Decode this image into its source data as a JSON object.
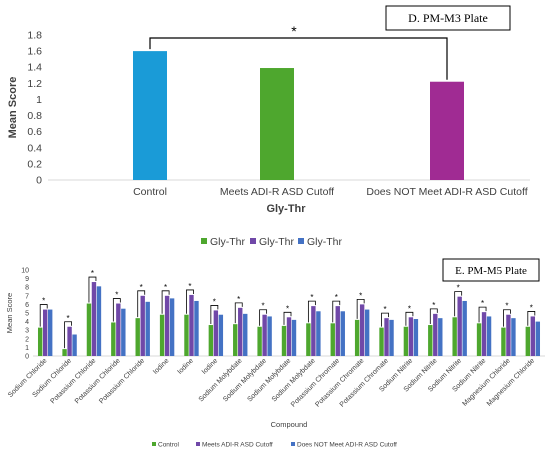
{
  "chart_data": [
    {
      "type": "bar",
      "panel_label": "D. PM-M3 Plate",
      "categories": [
        "Control",
        "Meets ADI-R ASD Cutoff",
        "Does NOT Meet ADI-R ASD Cutoff"
      ],
      "values": [
        1.6,
        1.39,
        1.22
      ],
      "bar_colors": [
        "#1a9bd7",
        "#4ea72e",
        "#a02b93"
      ],
      "ylabel": "Mean Score",
      "xlabel": "Gly-Thr",
      "ylim": [
        0,
        1.8
      ],
      "yticks": [
        "0",
        "0.2",
        "0.4",
        "0.6",
        "0.8",
        "1",
        "1.2",
        "1.4",
        "1.6",
        "1.8"
      ],
      "significance": "*",
      "legend": {
        "position": "bottom",
        "entries": [
          {
            "label": "Gly-Thr",
            "color": "#4ea72e"
          },
          {
            "label": "Gly-Thr",
            "color": "#7048a8"
          },
          {
            "label": "Gly-Thr",
            "color": "#4472c4"
          }
        ]
      },
      "grid": false
    },
    {
      "type": "bar",
      "panel_label": "E. PM-M5 Plate",
      "categories": [
        "Sodium Chloride",
        "Sodium Chloride",
        "Potassium Chloride",
        "Potassium Chloride",
        "Potassium Chloride",
        "Iodine",
        "Iodine",
        "Iodine",
        "Sodium Molybdate",
        "Sodium Molybdate",
        "Sodium Molybdate",
        "Sodium Molybdate",
        "Potassium Chromate",
        "Potassium Chromate",
        "Potassium Chromate",
        "Sodium Nitrite",
        "Sodium Nitrite",
        "Sodium Nitrite",
        "Sodium Nitrite",
        "Magnesium Chloride",
        "Magnesium Chloride"
      ],
      "series": [
        {
          "name": "Control",
          "color": "#4ea72e",
          "values": [
            3.3,
            0.8,
            6.1,
            3.9,
            4.4,
            4.8,
            4.8,
            3.6,
            3.7,
            3.4,
            3.5,
            3.8,
            3.8,
            4.2,
            3.3,
            3.4,
            3.6,
            4.5,
            3.8,
            3.3,
            3.4
          ]
        },
        {
          "name": "Meets ADI-R ASD Cutoff",
          "color": "#7048a8",
          "values": [
            5.4,
            3.4,
            8.6,
            6.1,
            7.0,
            7.0,
            7.1,
            5.3,
            5.6,
            4.8,
            4.5,
            5.8,
            5.8,
            6.0,
            4.4,
            4.5,
            4.9,
            6.9,
            5.1,
            4.8,
            4.6
          ]
        },
        {
          "name": "Does NOT Meet ADI-R ASD Cutoff",
          "color": "#4472c4",
          "values": [
            5.4,
            2.5,
            8.1,
            5.5,
            6.3,
            6.7,
            6.4,
            4.8,
            4.9,
            4.6,
            4.2,
            5.2,
            5.2,
            5.4,
            4.2,
            4.3,
            4.4,
            6.4,
            4.6,
            4.4,
            4.0
          ]
        }
      ],
      "significance": "*",
      "ylabel": "Mean Score",
      "xlabel": "Compound",
      "ylim": [
        0,
        10
      ],
      "yticks": [
        "0",
        "1",
        "2",
        "3",
        "4",
        "5",
        "6",
        "7",
        "8",
        "9",
        "10"
      ],
      "legend": {
        "position": "bottom"
      },
      "grid": false
    }
  ]
}
